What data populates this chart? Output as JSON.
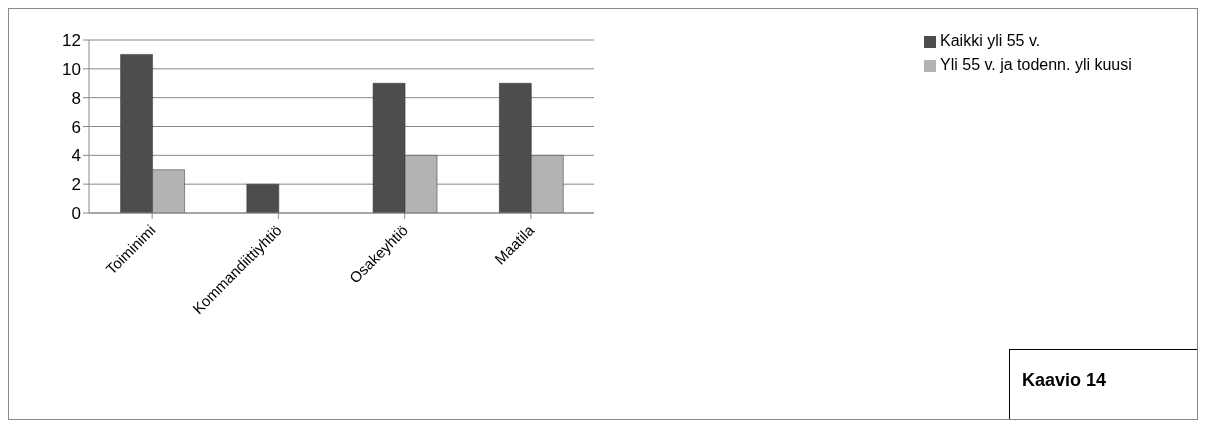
{
  "chart_data": {
    "type": "bar",
    "categories": [
      "Toiminimi",
      "Kommandiittiyhtiö",
      "Osakeyhtiö",
      "Maatila"
    ],
    "series": [
      {
        "name": "Kaikki yli 55 v.",
        "color": "#4d4d4d",
        "values": [
          11,
          2,
          9,
          9
        ]
      },
      {
        "name": "Yli 55 v. ja todenn. yli kuusi",
        "color": "#b3b3b3",
        "values": [
          3,
          0,
          4,
          4
        ]
      }
    ],
    "ylim": [
      0,
      12
    ],
    "yticks": [
      0,
      2,
      4,
      6,
      8,
      10,
      12
    ],
    "grid": "y",
    "legend": "right",
    "annotations": [
      "Kaavio 14"
    ]
  }
}
